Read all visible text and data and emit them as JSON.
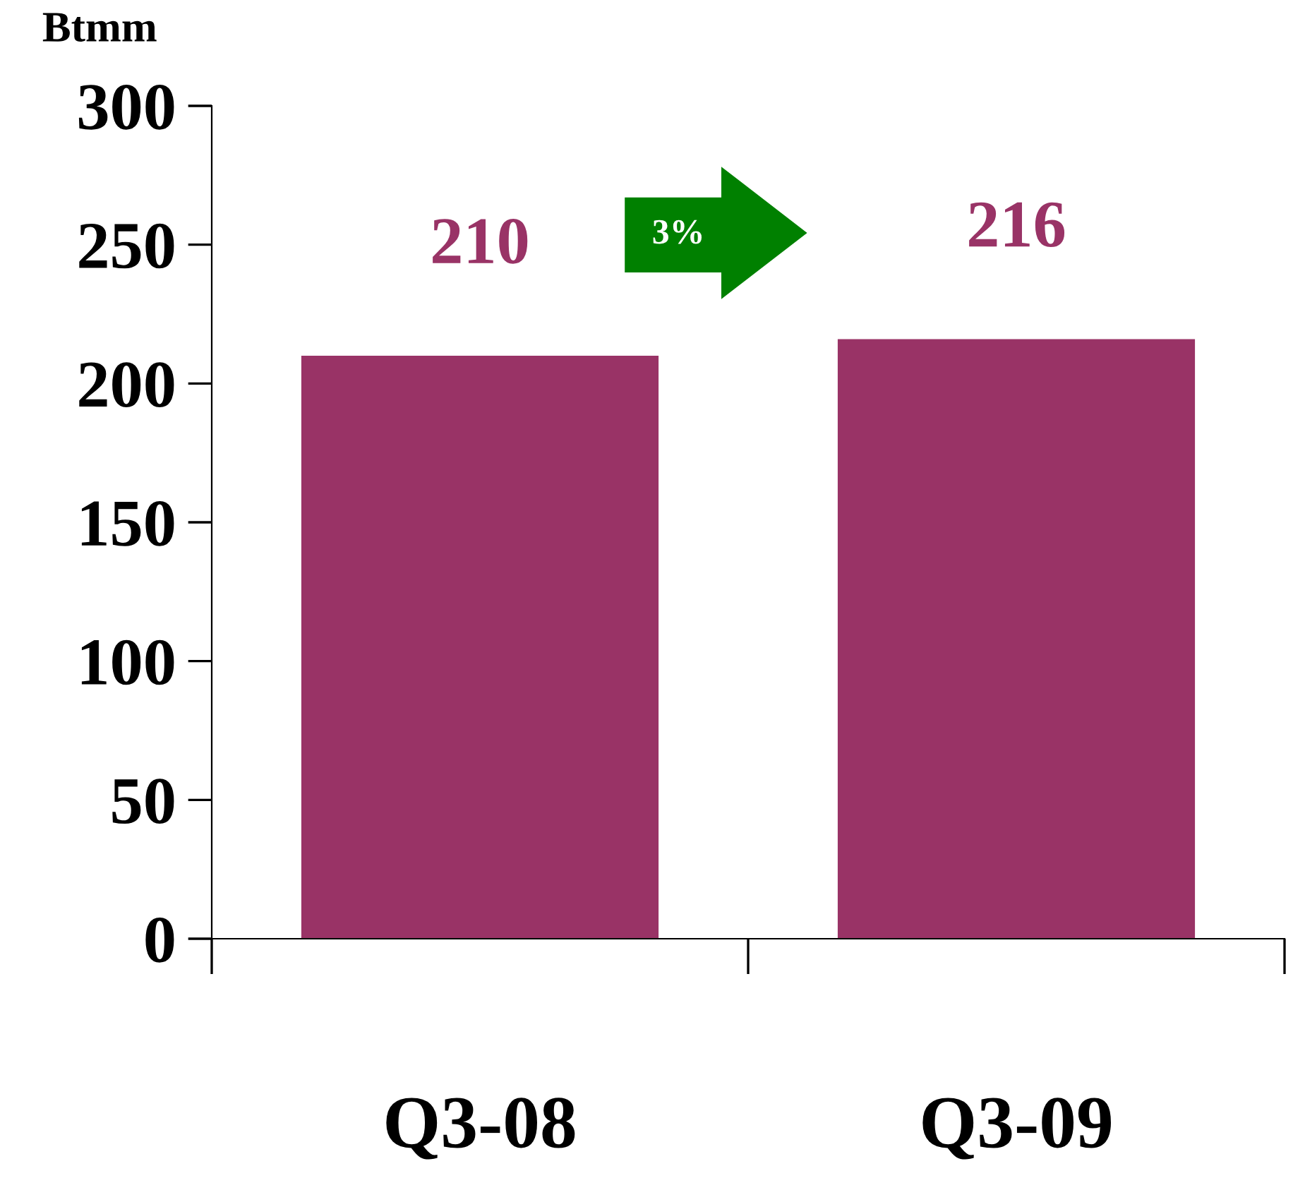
{
  "chart_data": {
    "type": "bar",
    "ylabel": "Btmm",
    "categories": [
      "Q3-08",
      "Q3-09"
    ],
    "series": [
      {
        "color": "#993366",
        "values": [
          210,
          216
        ]
      }
    ],
    "ylim": [
      0,
      300
    ],
    "yticks": [
      0,
      50,
      100,
      150,
      200,
      250,
      300
    ],
    "data_labels": true,
    "grid": false,
    "legend": false,
    "annotations": [
      "3%"
    ]
  }
}
